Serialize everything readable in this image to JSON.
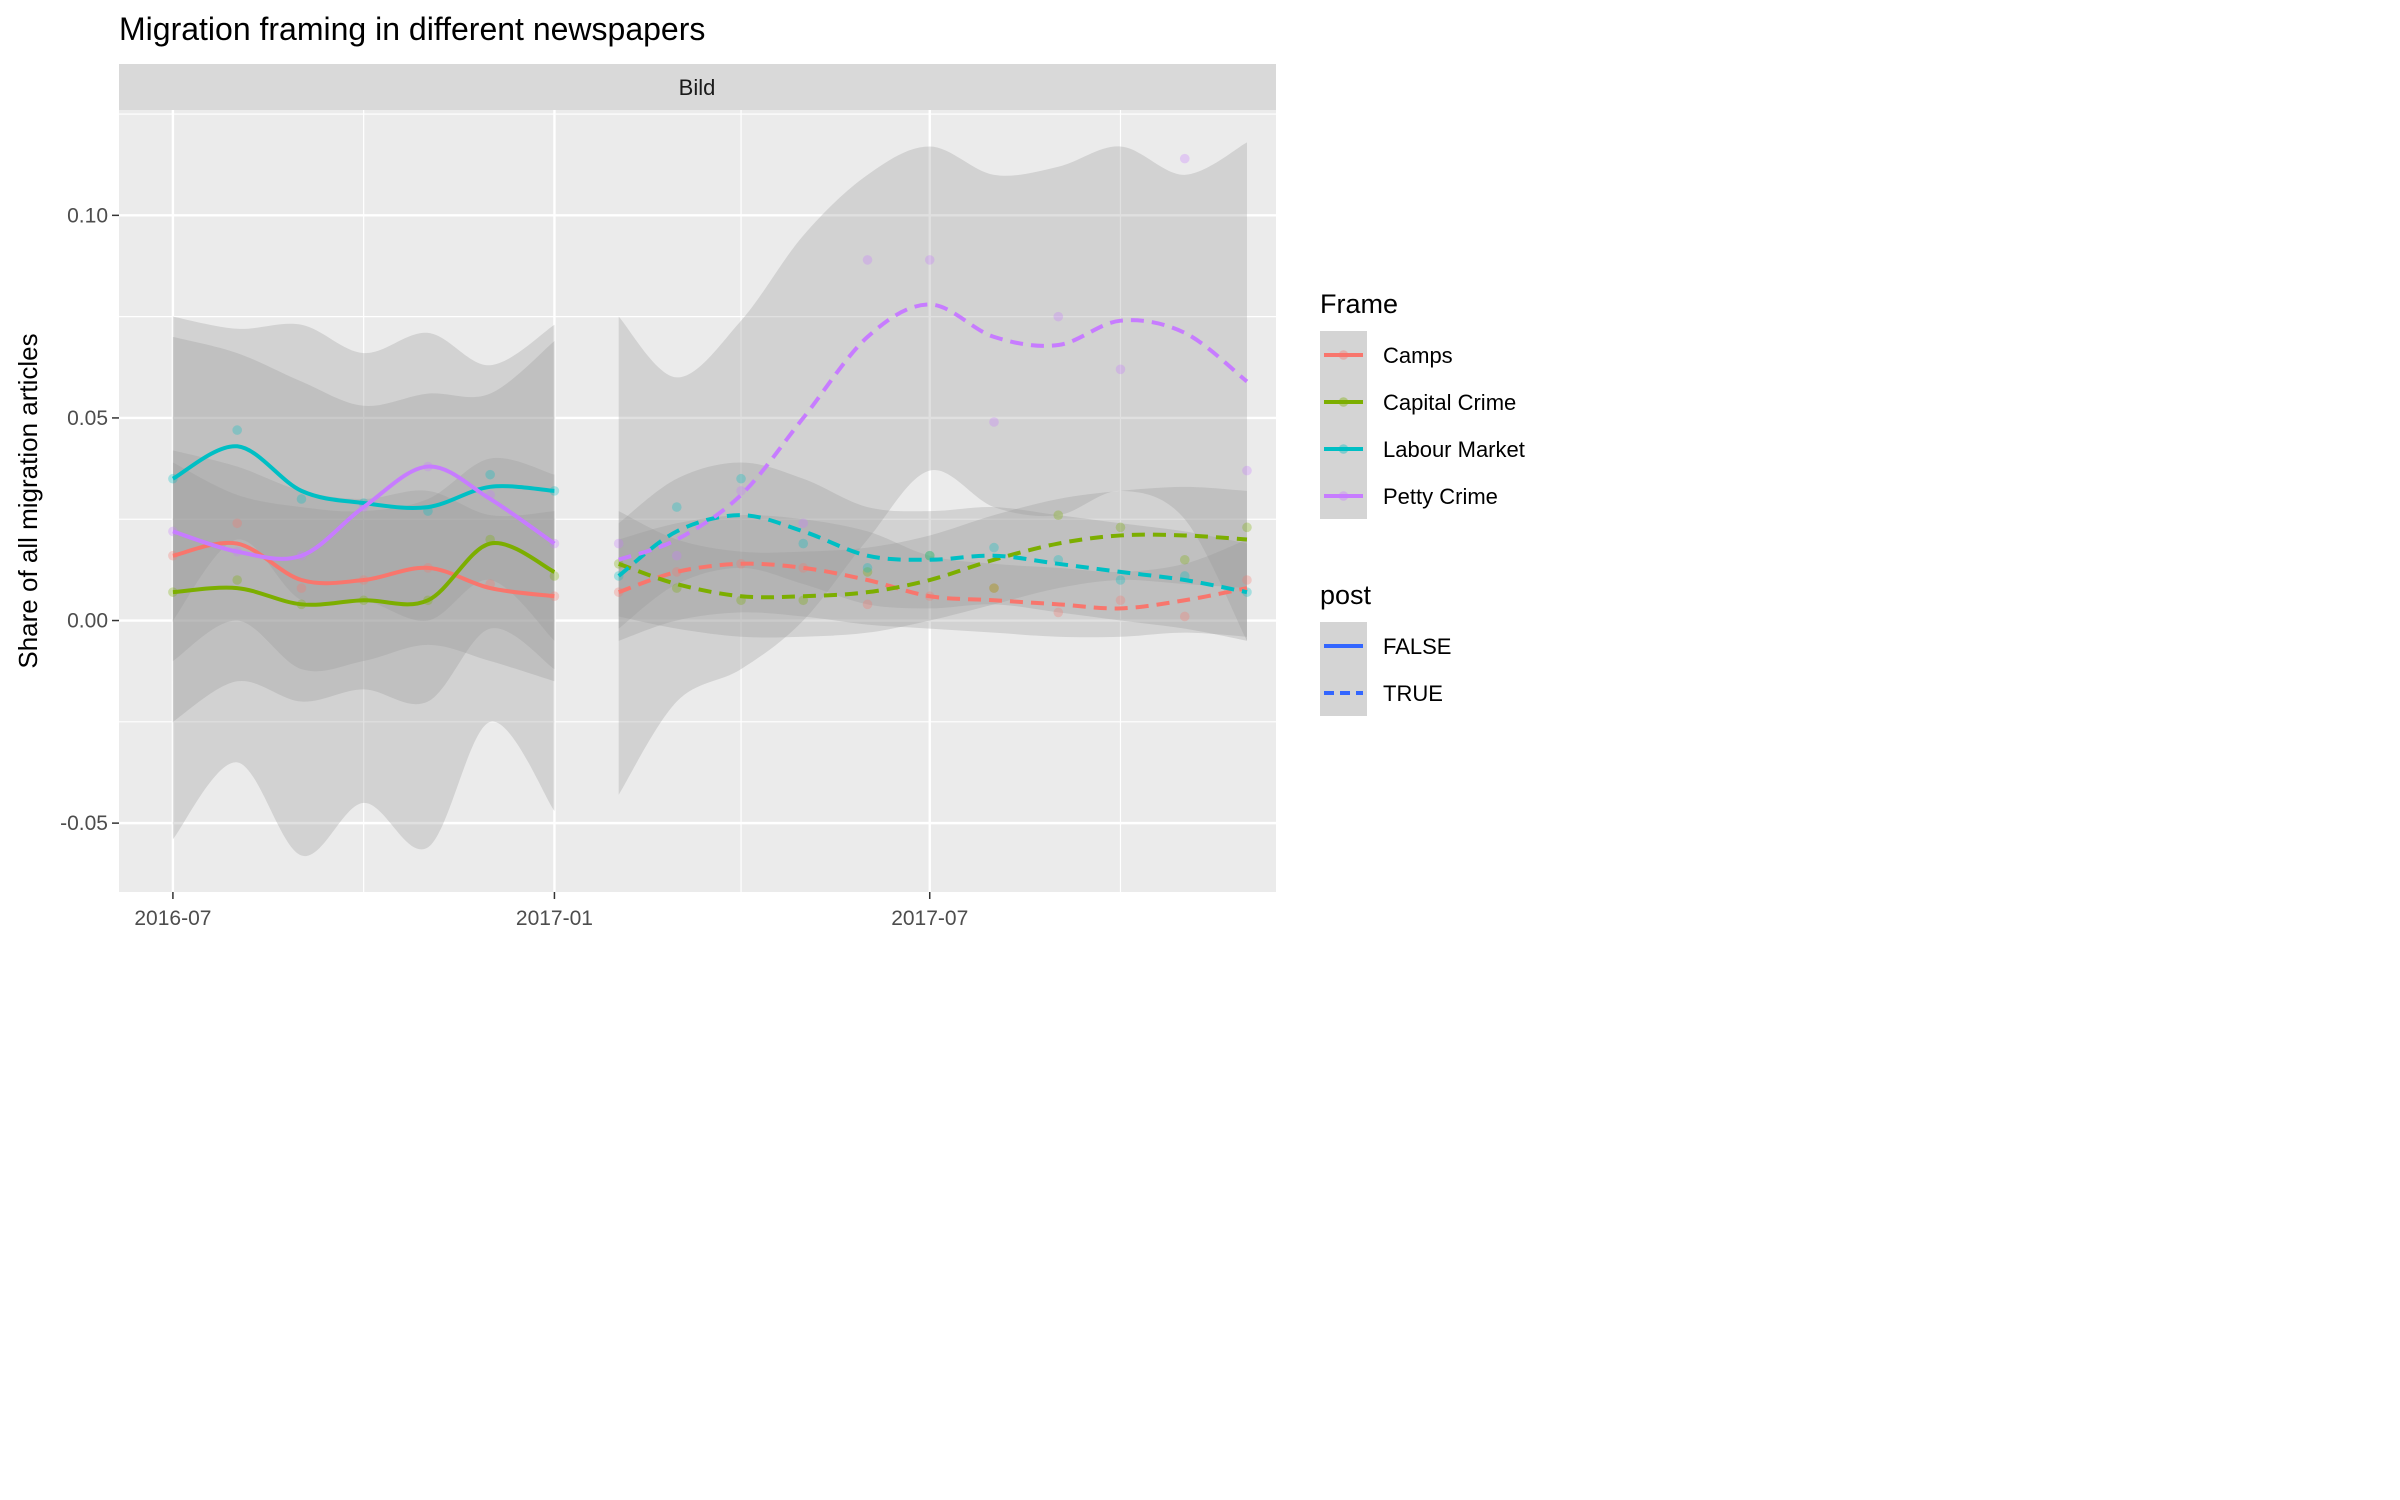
{
  "title": "Migration framing in different newspapers",
  "facet_label": "Bild",
  "chart_data": {
    "type": "line",
    "title": "Migration framing in different newspapers",
    "facet": "Bild",
    "xlabel": "",
    "ylabel": "Share of all migration articles",
    "x_ticks": [
      "2016-07",
      "2017-01",
      "2017-07"
    ],
    "y_ticks": [
      -0.05,
      0.0,
      0.05,
      0.1
    ],
    "y_tick_labels": [
      "-0.05",
      "0.00",
      "0.05",
      "0.10"
    ],
    "xlim": [
      "2016-06-05",
      "2017-12-15"
    ],
    "ylim": [
      -0.067,
      0.126
    ],
    "grid": true,
    "legend_placement": "right",
    "legends": [
      {
        "title": "Frame",
        "entries": [
          {
            "label": "Camps",
            "color": "#F8766D"
          },
          {
            "label": "Capital Crime",
            "color": "#7CAE00"
          },
          {
            "label": "Labour Market",
            "color": "#00BFC4"
          },
          {
            "label": "Petty Crime",
            "color": "#C77CFF"
          }
        ]
      },
      {
        "title": "post",
        "entries": [
          {
            "label": "FALSE",
            "linetype": "solid",
            "color": "#3366FF"
          },
          {
            "label": "TRUE",
            "linetype": "dashed",
            "color": "#3366FF"
          }
        ]
      }
    ],
    "series": [
      {
        "frame": "Camps",
        "post": "FALSE",
        "color": "#F8766D",
        "x": [
          "2016-07-01",
          "2016-08-01",
          "2016-09-01",
          "2016-10-01",
          "2016-11-01",
          "2016-12-01",
          "2017-01-01"
        ],
        "smooth": [
          0.016,
          0.019,
          0.01,
          0.01,
          0.013,
          0.008,
          0.006
        ],
        "points": [
          0.016,
          0.024,
          0.008,
          0.01,
          0.013,
          0.009,
          0.006
        ],
        "se_lo": [
          -0.01,
          0.0,
          -0.012,
          -0.01,
          -0.006,
          -0.01,
          -0.015
        ],
        "se_hi": [
          0.042,
          0.038,
          0.032,
          0.03,
          0.032,
          0.026,
          0.027
        ]
      },
      {
        "frame": "Capital Crime",
        "post": "FALSE",
        "color": "#7CAE00",
        "x": [
          "2016-07-01",
          "2016-08-01",
          "2016-09-01",
          "2016-10-01",
          "2016-11-01",
          "2016-12-01",
          "2017-01-01"
        ],
        "smooth": [
          0.007,
          0.008,
          0.004,
          0.005,
          0.005,
          0.019,
          0.012
        ],
        "points": [
          0.007,
          0.01,
          0.004,
          0.005,
          0.005,
          0.02,
          0.011
        ],
        "se_lo": [
          -0.025,
          -0.015,
          -0.02,
          -0.017,
          -0.02,
          -0.002,
          -0.012
        ],
        "se_hi": [
          0.039,
          0.031,
          0.028,
          0.027,
          0.03,
          0.04,
          0.036
        ]
      },
      {
        "frame": "Labour Market",
        "post": "FALSE",
        "color": "#00BFC4",
        "x": [
          "2016-07-01",
          "2016-08-01",
          "2016-09-01",
          "2016-10-01",
          "2016-11-01",
          "2016-12-01",
          "2017-01-01"
        ],
        "smooth": [
          0.035,
          0.043,
          0.032,
          0.029,
          0.028,
          0.033,
          0.032
        ],
        "points": [
          0.035,
          0.047,
          0.03,
          0.029,
          0.027,
          0.036,
          0.032
        ],
        "se_lo": [
          0.0,
          0.02,
          0.005,
          0.005,
          0.0,
          0.01,
          -0.005
        ],
        "se_hi": [
          0.07,
          0.066,
          0.059,
          0.053,
          0.056,
          0.056,
          0.069
        ]
      },
      {
        "frame": "Petty Crime",
        "post": "FALSE",
        "color": "#C77CFF",
        "x": [
          "2016-07-01",
          "2016-08-01",
          "2016-09-01",
          "2016-10-01",
          "2016-11-01",
          "2016-12-01",
          "2017-01-01"
        ],
        "smooth": [
          0.022,
          0.017,
          0.016,
          0.028,
          0.038,
          0.03,
          0.019
        ],
        "points": [
          0.022,
          0.017,
          0.016,
          0.028,
          0.038,
          0.031,
          0.019
        ],
        "se_lo": [
          -0.054,
          -0.035,
          -0.058,
          -0.045,
          -0.056,
          -0.025,
          -0.047
        ],
        "se_hi": [
          0.075,
          0.072,
          0.073,
          0.066,
          0.071,
          0.063,
          0.073
        ]
      },
      {
        "frame": "Camps",
        "post": "TRUE",
        "color": "#F8766D",
        "x": [
          "2017-02-01",
          "2017-03-01",
          "2017-04-01",
          "2017-05-01",
          "2017-06-01",
          "2017-07-01",
          "2017-08-01",
          "2017-09-01",
          "2017-10-01",
          "2017-11-01",
          "2017-12-01"
        ],
        "smooth": [
          0.007,
          0.012,
          0.014,
          0.013,
          0.01,
          0.006,
          0.005,
          0.004,
          0.003,
          0.005,
          0.008
        ],
        "points": [
          0.007,
          0.012,
          0.014,
          0.013,
          0.004,
          0.006,
          0.008,
          0.002,
          0.005,
          0.001,
          0.01
        ],
        "se_lo": [
          -0.005,
          0.0,
          0.002,
          0.001,
          -0.001,
          -0.002,
          -0.003,
          -0.004,
          -0.004,
          -0.003,
          -0.004
        ],
        "se_hi": [
          0.02,
          0.024,
          0.026,
          0.025,
          0.022,
          0.016,
          0.014,
          0.013,
          0.012,
          0.014,
          0.02
        ]
      },
      {
        "frame": "Capital Crime",
        "post": "TRUE",
        "color": "#7CAE00",
        "x": [
          "2017-02-01",
          "2017-03-01",
          "2017-04-01",
          "2017-05-01",
          "2017-06-01",
          "2017-07-01",
          "2017-08-01",
          "2017-09-01",
          "2017-10-01",
          "2017-11-01",
          "2017-12-01"
        ],
        "smooth": [
          0.014,
          0.009,
          0.006,
          0.006,
          0.007,
          0.01,
          0.015,
          0.019,
          0.021,
          0.021,
          0.02
        ],
        "points": [
          0.014,
          0.008,
          0.005,
          0.005,
          0.012,
          0.016,
          0.008,
          0.026,
          0.023,
          0.015,
          0.023
        ],
        "se_lo": [
          0.001,
          -0.002,
          -0.004,
          -0.004,
          -0.003,
          0.0,
          0.004,
          0.008,
          0.01,
          0.009,
          0.008
        ],
        "se_hi": [
          0.027,
          0.02,
          0.017,
          0.017,
          0.018,
          0.021,
          0.026,
          0.03,
          0.032,
          0.033,
          0.032
        ]
      },
      {
        "frame": "Labour Market",
        "post": "TRUE",
        "color": "#00BFC4",
        "x": [
          "2017-02-01",
          "2017-03-01",
          "2017-04-01",
          "2017-05-01",
          "2017-06-01",
          "2017-07-01",
          "2017-08-01",
          "2017-09-01",
          "2017-10-01",
          "2017-11-01",
          "2017-12-01"
        ],
        "smooth": [
          0.011,
          0.022,
          0.026,
          0.022,
          0.016,
          0.015,
          0.016,
          0.014,
          0.012,
          0.01,
          0.007
        ],
        "points": [
          0.011,
          0.028,
          0.035,
          0.019,
          0.013,
          0.016,
          0.018,
          0.015,
          0.01,
          0.011,
          0.007
        ],
        "se_lo": [
          -0.002,
          0.009,
          0.013,
          0.009,
          0.004,
          0.003,
          0.004,
          0.002,
          0.0,
          -0.002,
          -0.005
        ],
        "se_hi": [
          0.024,
          0.035,
          0.039,
          0.035,
          0.028,
          0.027,
          0.028,
          0.026,
          0.024,
          0.022,
          0.019
        ]
      },
      {
        "frame": "Petty Crime",
        "post": "TRUE",
        "color": "#C77CFF",
        "x": [
          "2017-02-01",
          "2017-03-01",
          "2017-04-01",
          "2017-05-01",
          "2017-06-01",
          "2017-07-01",
          "2017-08-01",
          "2017-09-01",
          "2017-10-01",
          "2017-11-01",
          "2017-12-01"
        ],
        "smooth": [
          0.015,
          0.02,
          0.031,
          0.05,
          0.07,
          0.078,
          0.07,
          0.068,
          0.074,
          0.071,
          0.059
        ],
        "points": [
          0.019,
          0.016,
          0.032,
          0.024,
          0.089,
          0.089,
          0.049,
          0.075,
          0.062,
          0.114,
          0.037
        ],
        "se_lo": [
          -0.043,
          -0.02,
          -0.012,
          0.0,
          0.02,
          0.037,
          0.028,
          0.026,
          0.032,
          0.025,
          -0.005
        ],
        "se_hi": [
          0.075,
          0.06,
          0.074,
          0.095,
          0.11,
          0.117,
          0.11,
          0.112,
          0.117,
          0.11,
          0.118
        ]
      }
    ]
  }
}
